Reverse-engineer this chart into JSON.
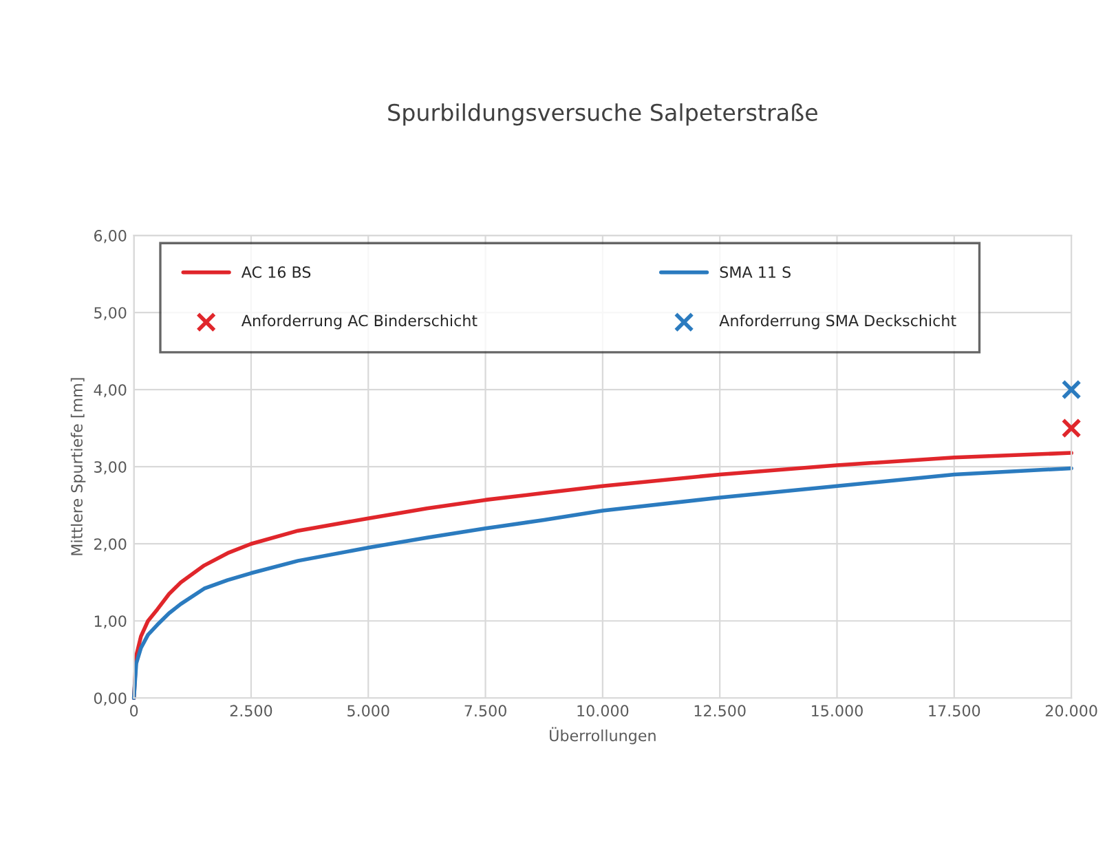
{
  "chart_data": {
    "type": "line",
    "title": "Spurbildungsversuche Salpeterstraße",
    "xlabel": "Überrollungen",
    "ylabel": "Mittlere Spurtiefe [mm]",
    "xlim": [
      0,
      20000
    ],
    "ylim": [
      0,
      6
    ],
    "xticks": [
      {
        "value": 0,
        "label": "0"
      },
      {
        "value": 2500,
        "label": "2.500"
      },
      {
        "value": 5000,
        "label": "5.000"
      },
      {
        "value": 7500,
        "label": "7.500"
      },
      {
        "value": 10000,
        "label": "10.000"
      },
      {
        "value": 12500,
        "label": "12.500"
      },
      {
        "value": 15000,
        "label": "15.000"
      },
      {
        "value": 17500,
        "label": "17.500"
      },
      {
        "value": 20000,
        "label": "20.000"
      }
    ],
    "yticks": [
      {
        "value": 0,
        "label": "0,00"
      },
      {
        "value": 1,
        "label": "1,00"
      },
      {
        "value": 2,
        "label": "2,00"
      },
      {
        "value": 3,
        "label": "3,00"
      },
      {
        "value": 4,
        "label": "4,00"
      },
      {
        "value": 5,
        "label": "5,00"
      },
      {
        "value": 6,
        "label": "6,00"
      }
    ],
    "grid": true,
    "legend": "top left",
    "marker": "none",
    "line_style": "solid",
    "series": [
      {
        "name": "AC 16 BS",
        "color": "#e0262b",
        "x": [
          0,
          50,
          150,
          300,
          500,
          750,
          1000,
          1500,
          2000,
          2500,
          3500,
          5000,
          6250,
          7500,
          8750,
          10000,
          12500,
          15000,
          17500,
          20000
        ],
        "values": [
          0,
          0.55,
          0.8,
          1.0,
          1.15,
          1.35,
          1.5,
          1.72,
          1.88,
          2.0,
          2.17,
          2.33,
          2.46,
          2.57,
          2.66,
          2.75,
          2.9,
          3.02,
          3.12,
          3.18
        ]
      },
      {
        "name": "SMA 11 S",
        "color": "#2b7bbf",
        "x": [
          0,
          50,
          150,
          300,
          500,
          750,
          1000,
          1500,
          2000,
          2500,
          3500,
          5000,
          6250,
          7500,
          8750,
          10000,
          12500,
          15000,
          17500,
          20000
        ],
        "values": [
          0,
          0.45,
          0.65,
          0.82,
          0.95,
          1.1,
          1.22,
          1.42,
          1.53,
          1.62,
          1.78,
          1.95,
          2.08,
          2.2,
          2.31,
          2.43,
          2.6,
          2.75,
          2.9,
          2.98
        ]
      },
      {
        "name": "Anforderrung AC Binderschicht",
        "type": "scatter",
        "marker": "cross",
        "color": "#e0262b",
        "x": [
          20000
        ],
        "values": [
          3.5
        ]
      },
      {
        "name": "Anforderrung SMA Deckschicht",
        "type": "scatter",
        "marker": "cross",
        "color": "#2b7bbf",
        "x": [
          20000
        ],
        "values": [
          4.0
        ]
      }
    ]
  }
}
